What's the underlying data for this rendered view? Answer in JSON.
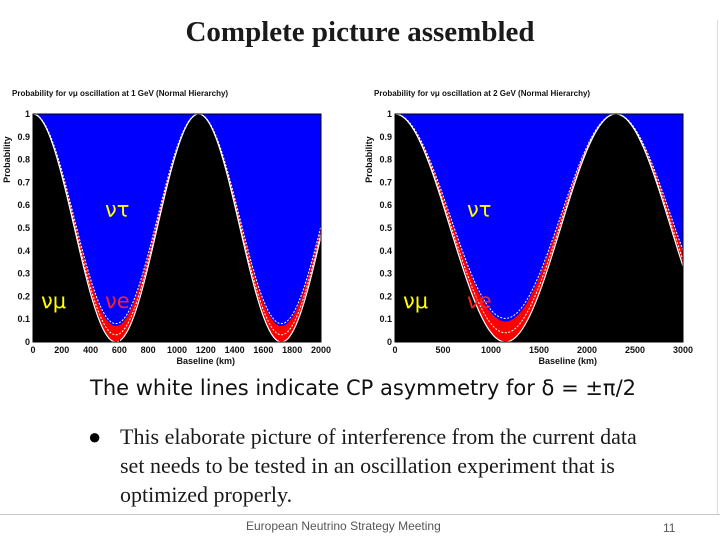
{
  "slide": {
    "title": "Complete picture assembled",
    "caption": "The white lines indicate CP asymmetry for δ = ±π/2",
    "bullet": "This elaborate picture of interference from the current data set needs to be tested in an oscillation experiment that is optimized properly.",
    "footer": "European Neutrino Strategy Meeting",
    "page_number": "11"
  },
  "chart_data": [
    {
      "type": "area",
      "title": "Probability for νμ oscillation at 1 GeV (Normal Hierarchy)",
      "xlabel": "Baseline (km)",
      "ylabel": "Probability",
      "xlim": [
        0,
        2000
      ],
      "ylim": [
        0,
        1
      ],
      "x_ticks": [
        "0",
        "200",
        "400",
        "600",
        "800",
        "1000",
        "1200",
        "1400",
        "1600",
        "1800",
        "2000"
      ],
      "y_ticks": [
        "0",
        "0.1",
        "0.2",
        "0.3",
        "0.4",
        "0.5",
        "0.6",
        "0.7",
        "0.8",
        "0.9",
        "1"
      ],
      "region_labels": [
        "ντ",
        "νμ",
        "νe"
      ],
      "colors": {
        "numu": "#000000",
        "nutau": "#0000ff",
        "nue": "#ff0000",
        "cp_lines": "#ffffff"
      },
      "survival_first_minimum_km": 575,
      "max_nue_probability": 0.07,
      "cp_asymmetry_white_lines": true
    },
    {
      "type": "area",
      "title": "Probability for νμ oscillation at 2 GeV (Normal Hierarchy)",
      "xlabel": "Baseline (km)",
      "ylabel": "Probability",
      "xlim": [
        0,
        3000
      ],
      "ylim": [
        0,
        1
      ],
      "x_ticks": [
        "0",
        "500",
        "1000",
        "1500",
        "2000",
        "2500",
        "3000"
      ],
      "y_ticks": [
        "0",
        "0.1",
        "0.2",
        "0.3",
        "0.4",
        "0.5",
        "0.6",
        "0.7",
        "0.8",
        "0.9",
        "1"
      ],
      "region_labels": [
        "ντ",
        "νμ",
        "νe"
      ],
      "colors": {
        "numu": "#000000",
        "nutau": "#0000ff",
        "nue": "#ff0000",
        "cp_lines": "#ffffff"
      },
      "survival_first_minimum_km": 1150,
      "max_nue_probability": 0.09,
      "cp_asymmetry_white_lines": true
    }
  ]
}
